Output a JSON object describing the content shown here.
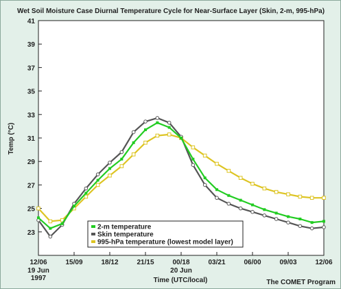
{
  "chart_data": {
    "type": "line",
    "title": "Wet Soil Moisture Case Diurnal Temperature Cycle for Near-Surface Layer (Skin, 2-m, 995-hPa)",
    "xlabel": "Time (UTC/local)",
    "ylabel": "Temp (°C)",
    "credit": "The COMET Program",
    "x_tick_labels": [
      "12/06",
      "15/09",
      "18/12",
      "21/15",
      "00/18",
      "03/21",
      "06/00",
      "09/03",
      "12/06"
    ],
    "x_tick_hours": [
      0,
      3,
      6,
      9,
      12,
      15,
      18,
      21,
      24
    ],
    "x_date_labels": [
      {
        "hour": 0,
        "lines": [
          "19 Jun",
          "1997"
        ]
      },
      {
        "hour": 12,
        "lines": [
          "20 Jun"
        ]
      }
    ],
    "xlim": [
      0,
      24
    ],
    "ylim": [
      21,
      41
    ],
    "y_ticks": [
      23,
      25,
      27,
      29,
      31,
      33,
      35,
      37,
      39,
      41
    ],
    "grid": false,
    "legend_position": "bottom-center",
    "series": [
      {
        "name": "2-m temperature",
        "color": "#22cc22",
        "marker": "filled-square",
        "x": [
          0,
          1,
          2,
          3,
          4,
          5,
          6,
          7,
          8,
          9,
          10,
          11,
          12,
          13,
          14,
          15,
          16,
          17,
          18,
          19,
          20,
          21,
          22,
          23,
          24
        ],
        "y": [
          24.2,
          23.3,
          23.7,
          25.2,
          26.3,
          27.4,
          28.4,
          29.2,
          30.6,
          31.7,
          32.3,
          31.9,
          31.0,
          29.2,
          27.6,
          26.6,
          26.1,
          25.7,
          25.3,
          24.9,
          24.6,
          24.3,
          24.1,
          23.8,
          23.9
        ]
      },
      {
        "name": "Skin temperature",
        "color": "#555555",
        "marker": "hollow-circle",
        "x": [
          0,
          1,
          2,
          3,
          4,
          5,
          6,
          7,
          8,
          9,
          10,
          11,
          12,
          13,
          14,
          15,
          16,
          17,
          18,
          19,
          20,
          21,
          22,
          23,
          24
        ],
        "y": [
          24.0,
          22.6,
          23.6,
          25.4,
          26.7,
          27.9,
          28.9,
          29.8,
          31.5,
          32.4,
          32.7,
          32.3,
          31.1,
          28.7,
          27.0,
          25.9,
          25.4,
          25.0,
          24.7,
          24.4,
          24.1,
          23.8,
          23.5,
          23.3,
          23.4
        ]
      },
      {
        "name": "995-hPa temperature (lowest model layer)",
        "color": "#ddc422",
        "marker": "hollow-square",
        "x": [
          0,
          1,
          2,
          3,
          4,
          5,
          6,
          7,
          8,
          9,
          10,
          11,
          12,
          13,
          14,
          15,
          16,
          17,
          18,
          19,
          20,
          21,
          22,
          23,
          24
        ],
        "y": [
          25.0,
          23.9,
          24.0,
          25.0,
          26.0,
          27.0,
          27.8,
          28.6,
          29.6,
          30.6,
          31.2,
          31.3,
          31.0,
          30.2,
          29.5,
          28.8,
          28.2,
          27.6,
          27.1,
          26.7,
          26.4,
          26.2,
          26.0,
          25.9,
          25.9
        ]
      }
    ]
  }
}
